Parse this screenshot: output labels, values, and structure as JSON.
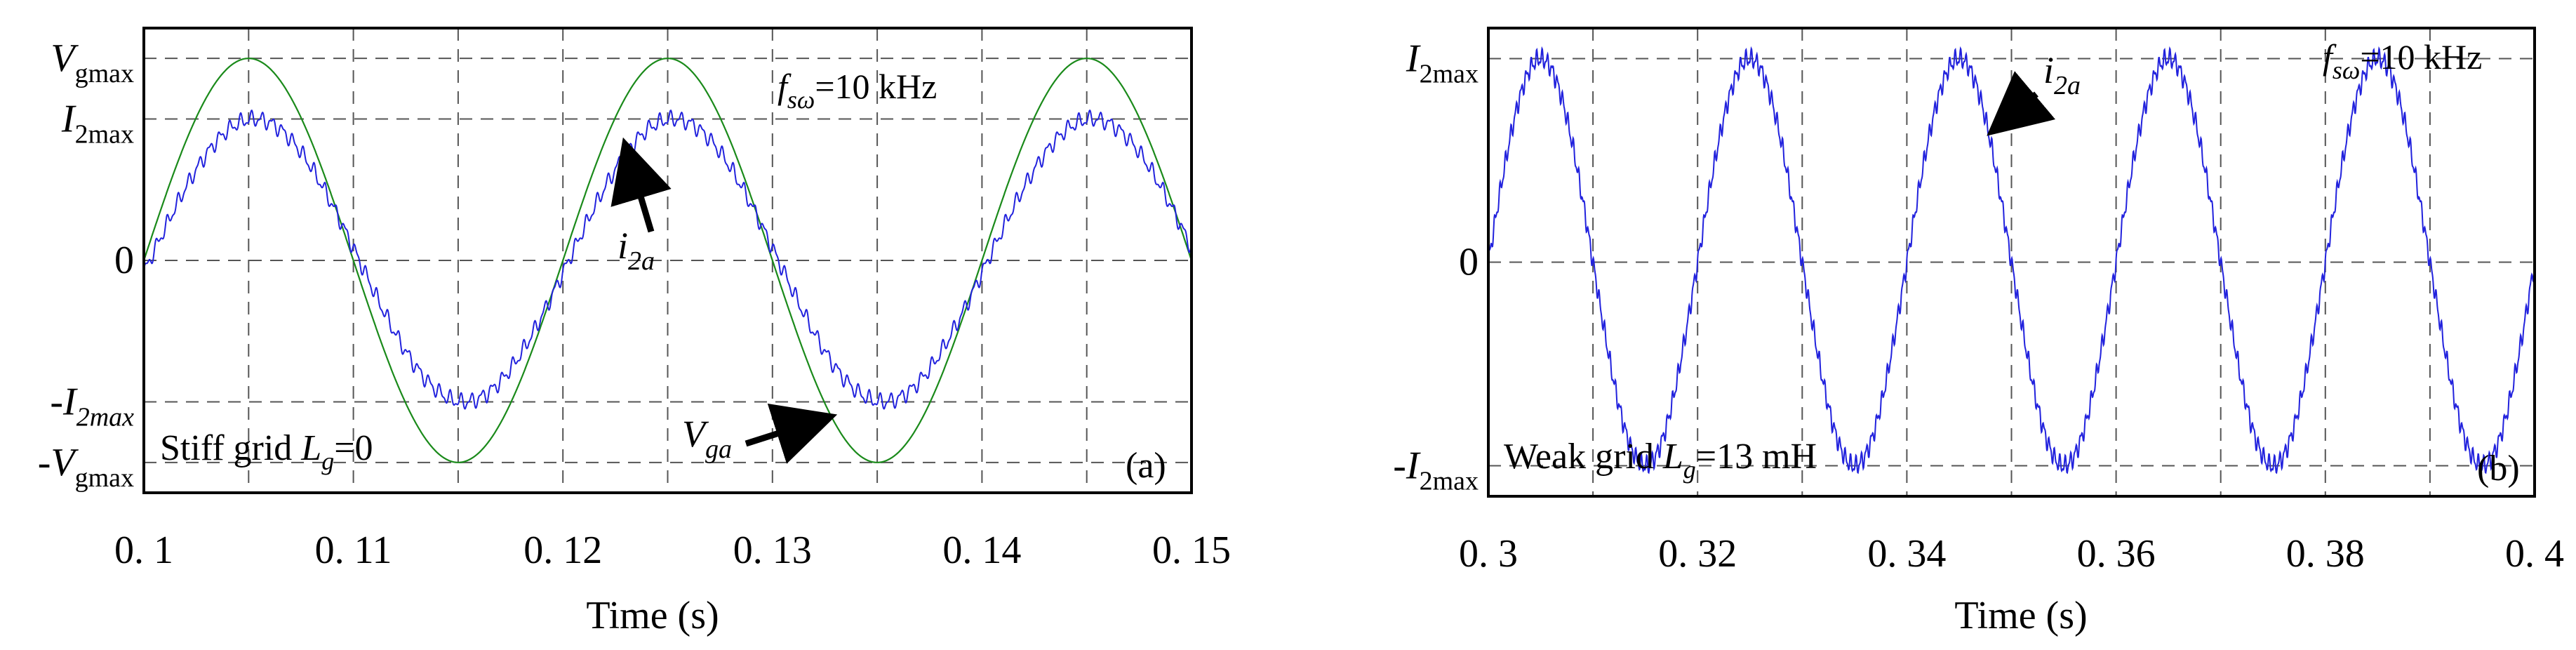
{
  "chart_data": [
    {
      "type": "line",
      "panel_label": "(a)",
      "xlabel": "Time (s)",
      "xlim": [
        0.1,
        0.15
      ],
      "x_ticks": [
        0.1,
        0.11,
        0.12,
        0.13,
        0.14,
        0.15
      ],
      "x_tick_labels": [
        "0. 1",
        "0. 11",
        "0. 12",
        "0. 13",
        "0. 14",
        "0. 15"
      ],
      "ylim": [
        -1.15,
        1.15
      ],
      "y_ticks": [
        {
          "value": 1.0,
          "label": "V",
          "sub": "gmax",
          "prefix": ""
        },
        {
          "value": 0.7,
          "label": "I",
          "sub": "2max",
          "prefix": ""
        },
        {
          "value": 0.0,
          "label": "0",
          "sub": "",
          "prefix": ""
        },
        {
          "value": -0.7,
          "label": "I",
          "sub": "2max",
          "prefix": "-"
        },
        {
          "value": -1.0,
          "label": "V",
          "sub": "gmax",
          "prefix": "-"
        }
      ],
      "series": [
        {
          "name": "V_ga",
          "color": "#1a8a1a",
          "frequency_hz": 50,
          "amplitude": 1.0,
          "phase_deg": 0,
          "ripple_amplitude": 0.0
        },
        {
          "name": "i_2a",
          "color": "#2222dd",
          "frequency_hz": 50,
          "amplitude": 0.7,
          "phase_deg": 5,
          "ripple_amplitude": 0.03
        }
      ],
      "annotations": {
        "fsw": {
          "main": "f",
          "sub": "sω",
          "rest": "=10 kHz"
        },
        "grid_condition": {
          "text": "Stiff grid ",
          "sym": "L",
          "sub": "g",
          "rest": "=0"
        },
        "i_label": {
          "sym": "i",
          "sub": "2a"
        },
        "v_label": {
          "sym": "V",
          "sub": "ga"
        }
      }
    },
    {
      "type": "line",
      "panel_label": "(b)",
      "xlabel": "Time (s)",
      "xlim": [
        0.3,
        0.4
      ],
      "x_ticks": [
        0.3,
        0.32,
        0.34,
        0.36,
        0.38,
        0.4
      ],
      "x_tick_labels": [
        "0. 3",
        "0. 32",
        "0. 34",
        "0. 36",
        "0. 38",
        "0. 4"
      ],
      "ylim": [
        -1.15,
        1.15
      ],
      "y_ticks": [
        {
          "value": 1.0,
          "label": "I",
          "sub": "2max",
          "prefix": ""
        },
        {
          "value": 0.0,
          "label": "0",
          "sub": "",
          "prefix": ""
        },
        {
          "value": -1.0,
          "label": "I",
          "sub": "2max",
          "prefix": "-"
        }
      ],
      "series": [
        {
          "name": "i_2a",
          "color": "#2222dd",
          "frequency_hz": 50,
          "amplitude": 1.0,
          "phase_deg": 0,
          "ripple_amplitude": 0.035
        }
      ],
      "annotations": {
        "fsw": {
          "main": "f",
          "sub": "sω",
          "rest": "=10 kHz"
        },
        "grid_condition": {
          "text": "Weak grid ",
          "sym": "L",
          "sub": "g",
          "rest": "=13 mH"
        },
        "i_label": {
          "sym": "i",
          "sub": "2a"
        }
      }
    }
  ]
}
